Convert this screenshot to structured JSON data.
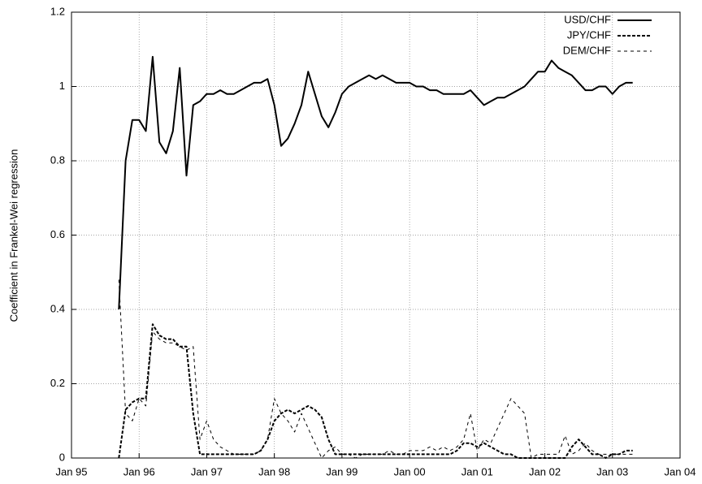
{
  "chart_data": {
    "type": "line",
    "ylabel": "Coefficient in Frankel-Wei regression",
    "x": [
      1995.7,
      1995.8,
      1995.9,
      1996.0,
      1996.1,
      1996.2,
      1996.3,
      1996.4,
      1996.5,
      1996.6,
      1996.7,
      1996.8,
      1996.9,
      1997.0,
      1997.1,
      1997.2,
      1997.3,
      1997.4,
      1997.5,
      1997.6,
      1997.7,
      1997.8,
      1997.9,
      1998.0,
      1998.1,
      1998.2,
      1998.3,
      1998.4,
      1998.5,
      1998.6,
      1998.7,
      1998.8,
      1998.9,
      1999.0,
      1999.1,
      1999.2,
      1999.3,
      1999.4,
      1999.5,
      1999.6,
      1999.7,
      1999.8,
      1999.9,
      2000.0,
      2000.1,
      2000.2,
      2000.3,
      2000.4,
      2000.5,
      2000.6,
      2000.7,
      2000.8,
      2000.9,
      2001.0,
      2001.1,
      2001.2,
      2001.3,
      2001.4,
      2001.5,
      2001.6,
      2001.7,
      2001.8,
      2001.9,
      2002.0,
      2002.1,
      2002.2,
      2002.3,
      2002.4,
      2002.5,
      2002.6,
      2002.7,
      2002.8,
      2002.9,
      2003.0,
      2003.1,
      2003.2,
      2003.3
    ],
    "series": [
      {
        "name": "USD/CHF",
        "color": "#000000",
        "values": [
          0.4,
          0.8,
          0.91,
          0.91,
          0.88,
          1.08,
          0.85,
          0.82,
          0.88,
          1.05,
          0.76,
          0.95,
          0.96,
          0.98,
          0.98,
          0.99,
          0.98,
          0.98,
          0.99,
          1.0,
          1.01,
          1.01,
          1.02,
          0.95,
          0.84,
          0.86,
          0.9,
          0.95,
          1.04,
          0.98,
          0.92,
          0.89,
          0.93,
          0.98,
          1.0,
          1.01,
          1.02,
          1.03,
          1.02,
          1.03,
          1.02,
          1.01,
          1.01,
          1.01,
          1.0,
          1.0,
          0.99,
          0.99,
          0.98,
          0.98,
          0.98,
          0.98,
          0.99,
          0.97,
          0.95,
          0.96,
          0.97,
          0.97,
          0.98,
          0.99,
          1.0,
          1.02,
          1.04,
          1.04,
          1.07,
          1.05,
          1.04,
          1.03,
          1.01,
          0.99,
          0.99,
          1.0,
          1.0,
          0.98,
          1.0,
          1.01,
          1.01
        ]
      },
      {
        "name": "JPY/CHF",
        "color": "#000000",
        "values": [
          0,
          0.13,
          0.15,
          0.16,
          0.16,
          0.36,
          0.33,
          0.32,
          0.32,
          0.3,
          0.3,
          0.12,
          0.01,
          0.01,
          0.01,
          0.01,
          0.01,
          0.01,
          0.01,
          0.01,
          0.01,
          0.02,
          0.05,
          0.1,
          0.12,
          0.13,
          0.12,
          0.13,
          0.14,
          0.13,
          0.11,
          0.05,
          0.01,
          0.01,
          0.01,
          0.01,
          0.01,
          0.01,
          0.01,
          0.01,
          0.01,
          0.01,
          0.01,
          0.01,
          0.01,
          0.01,
          0.01,
          0.01,
          0.01,
          0.01,
          0.02,
          0.04,
          0.04,
          0.03,
          0.04,
          0.03,
          0.02,
          0.01,
          0.01,
          0,
          0,
          0,
          0,
          0,
          0,
          0,
          0,
          0.03,
          0.05,
          0.03,
          0.01,
          0.01,
          0,
          0.01,
          0.01,
          0.02,
          0.02
        ]
      },
      {
        "name": "DEM/CHF",
        "color": "#000000",
        "values": [
          0.48,
          0.12,
          0.1,
          0.16,
          0.14,
          0.34,
          0.32,
          0.31,
          0.31,
          0.3,
          0.29,
          0.3,
          0.05,
          0.1,
          0.05,
          0.03,
          0.02,
          0.01,
          0.01,
          0.01,
          0.01,
          0.02,
          0.05,
          0.16,
          0.12,
          0.1,
          0.07,
          0.12,
          0.08,
          0.04,
          0.0,
          0.02,
          0.03,
          0.01,
          0.01,
          0.0,
          0.01,
          0.01,
          0.01,
          0.01,
          0.02,
          0.01,
          0.01,
          0.02,
          0.02,
          0.02,
          0.03,
          0.02,
          0.03,
          0.02,
          0.03,
          0.05,
          0.12,
          0.02,
          0.05,
          0.04,
          0.08,
          0.12,
          0.16,
          0.14,
          0.12,
          0.0,
          0.01,
          0.01,
          0.01,
          0.01,
          0.06,
          0.01,
          0.02,
          0.04,
          0.02,
          0.01,
          0.01,
          0.01,
          0.01,
          0.01,
          0.01
        ]
      }
    ],
    "xlim": [
      1995,
      2004
    ],
    "xticks": [
      {
        "value": 1995,
        "label": "Jan 95"
      },
      {
        "value": 1996,
        "label": "Jan 96"
      },
      {
        "value": 1997,
        "label": "Jan 97"
      },
      {
        "value": 1998,
        "label": "Jan 98"
      },
      {
        "value": 1999,
        "label": "Jan 99"
      },
      {
        "value": 2000,
        "label": "Jan 00"
      },
      {
        "value": 2001,
        "label": "Jan 01"
      },
      {
        "value": 2002,
        "label": "Jan 02"
      },
      {
        "value": 2003,
        "label": "Jan 03"
      },
      {
        "value": 2004,
        "label": "Jan 04"
      }
    ],
    "ylim": [
      0,
      1.2
    ],
    "yticks": [
      0,
      0.2,
      0.4,
      0.6,
      0.8,
      1,
      1.2
    ],
    "grid": true,
    "legend": "top-right"
  }
}
